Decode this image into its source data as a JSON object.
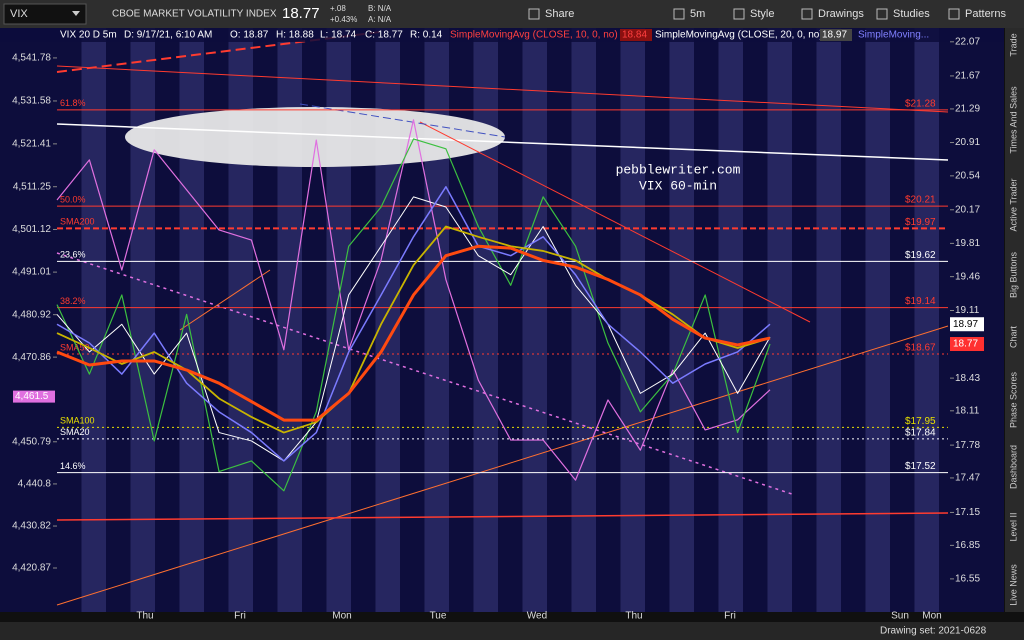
{
  "toolbar": {
    "symbol": "VIX",
    "description": "CBOE MARKET VOLATILITY INDEX",
    "last": "18.77",
    "change": "+.08",
    "change_pct": "+0.43%",
    "bid": "B: N/A",
    "ask": "A: N/A",
    "buttons": [
      "Share",
      "5m",
      "Style",
      "Drawings",
      "Studies",
      "Patterns"
    ]
  },
  "info_bar": [
    {
      "text": "VIX 20 D 5m",
      "color": "#ffffff"
    },
    {
      "text": "D: 9/17/21, 6:10 AM",
      "color": "#ffffff"
    },
    {
      "text": "O: 18.87",
      "color": "#ffffff"
    },
    {
      "text": "H: 18.88",
      "color": "#ffffff"
    },
    {
      "text": "L: 18.74",
      "color": "#ffffff"
    },
    {
      "text": "C: 18.77",
      "color": "#ffffff"
    },
    {
      "text": "R: 0.14",
      "color": "#ffffff"
    },
    {
      "text": "SimpleMovingAvg (CLOSE, 10, 0, no)",
      "color": "#ff4040"
    },
    {
      "text": "18.84",
      "color": "#ff4040"
    },
    {
      "text": "SimpleMovingAvg (CLOSE, 20, 0, no)",
      "color": "#ffffff"
    },
    {
      "text": "18.97",
      "color": "#ffffff"
    },
    {
      "text": "SimpleMoving...",
      "color": "#8080ff"
    }
  ],
  "chart_data": {
    "type": "line",
    "annotation": [
      "pebblewriter.com",
      "VIX 60-min"
    ],
    "days": [
      "Thu",
      "Fri",
      "Mon",
      "Tue",
      "Wed",
      "Thu",
      "Fri",
      "Sun",
      "Mon"
    ],
    "ylim": [
      4412.1,
      4548.4
    ],
    "yticks": [
      {
        "value": 4541.78,
        "label": "4,541.78"
      },
      {
        "value": 4531.58,
        "label": "4,531.58"
      },
      {
        "value": 4521.41,
        "label": "4,521.41"
      },
      {
        "value": 4511.25,
        "label": "4,511.25"
      },
      {
        "value": 4501.12,
        "label": "4,501.12"
      },
      {
        "value": 4491.01,
        "label": "4,491.01"
      },
      {
        "value": 4480.92,
        "label": "4,480.92"
      },
      {
        "value": 4470.86,
        "label": "4,470.86"
      },
      {
        "value": 4450.79,
        "label": "4,450.79"
      },
      {
        "value": 4440.8,
        "label": "4,440.8"
      },
      {
        "value": 4430.82,
        "label": "4,430.82"
      },
      {
        "value": 4420.87,
        "label": "4,420.87"
      }
    ],
    "y_last": {
      "value": 4461.5,
      "label": "4,461.5"
    },
    "y2lim": [
      16.32,
      22.21
    ],
    "y2_scale": "log",
    "y2ticks": [
      22.07,
      21.67,
      21.29,
      20.91,
      20.54,
      20.17,
      19.81,
      19.46,
      19.11,
      18.43,
      18.11,
      17.78,
      17.47,
      17.15,
      16.85,
      16.55
    ],
    "series": [
      {
        "color": "#e070e0",
        "axis": "y",
        "width": 1.2,
        "values": [
          4508.1,
          4517.6,
          4491.5,
          4520.0,
          4510.5,
          4501.0,
          4498.6,
          4472.6,
          4522.3,
          4472.6,
          4493.9,
          4527.1,
          4489.2,
          4465.4,
          4451.2,
          4451.2,
          4441.7,
          4460.7,
          4448.8,
          4467.8,
          4453.6,
          4456.0,
          4463.1
        ]
      },
      {
        "color": "#3cc040",
        "axis": "y2",
        "width": 1.2,
        "values": [
          19.17,
          18.47,
          19.27,
          17.82,
          19.07,
          17.53,
          17.63,
          17.35,
          18.1,
          19.78,
          20.2,
          20.95,
          20.84,
          19.99,
          19.37,
          20.31,
          19.78,
          18.78,
          18.1,
          18.47,
          19.27,
          17.9,
          18.77
        ]
      },
      {
        "color": "#ffffff",
        "axis": "y2",
        "width": 1,
        "values": [
          19.07,
          18.69,
          18.97,
          18.47,
          18.88,
          17.9,
          17.82,
          17.63,
          18.0,
          19.27,
          19.78,
          20.31,
          20.2,
          19.68,
          19.48,
          19.99,
          19.37,
          18.97,
          18.28,
          18.47,
          18.88,
          18.28,
          18.84
        ]
      },
      {
        "color": "#7b7bff",
        "axis": "y2",
        "width": 1.5,
        "values": [
          18.97,
          18.78,
          18.47,
          18.88,
          18.38,
          18.1,
          17.9,
          17.63,
          17.9,
          18.69,
          19.27,
          19.88,
          20.42,
          19.78,
          19.68,
          19.88,
          19.48,
          18.97,
          18.69,
          18.38,
          18.57,
          18.69,
          18.97
        ]
      },
      {
        "color": "#c8b400",
        "axis": "y2",
        "width": 1.8,
        "values": [
          18.88,
          18.73,
          18.57,
          18.69,
          18.51,
          18.23,
          18.05,
          17.9,
          18.0,
          18.28,
          18.97,
          19.58,
          19.99,
          19.88,
          19.78,
          19.73,
          19.63,
          19.43,
          19.27,
          19.07,
          18.83,
          18.73,
          18.83
        ]
      },
      {
        "color": "#ff4a10",
        "axis": "y2",
        "width": 3,
        "values": [
          18.69,
          18.56,
          18.6,
          18.6,
          18.51,
          18.38,
          18.2,
          18.02,
          18.02,
          18.28,
          18.69,
          19.27,
          19.68,
          19.78,
          19.76,
          19.63,
          19.56,
          19.43,
          19.27,
          19.02,
          18.83,
          18.76,
          18.83
        ]
      }
    ],
    "levels": [
      {
        "name": "61.8%",
        "value": 21.28,
        "value_label": "$21.28",
        "color": "#ff3b2f",
        "style": "solid"
      },
      {
        "name": "50.0%",
        "value": 20.21,
        "value_label": "$20.21",
        "color": "#ff3b2f",
        "style": "solid"
      },
      {
        "name": "SMA200",
        "value": 19.97,
        "value_label": "$19.97",
        "color": "#ff3b2f",
        "style": "dashed"
      },
      {
        "name": "23.6%",
        "value": 19.62,
        "value_label": "$19.62",
        "color": "#ffffff",
        "style": "solid"
      },
      {
        "name": "38.2%",
        "value": 19.14,
        "value_label": "$19.14",
        "color": "#ff3b2f",
        "style": "solid"
      },
      {
        "name": "SMA50",
        "value": 18.67,
        "value_label": "$18.67",
        "color": "#ff3b2f",
        "style": "dotted"
      },
      {
        "name": "SMA100",
        "value": 17.95,
        "value_label": "$17.95",
        "color": "#e8e000",
        "style": "dotted"
      },
      {
        "name": "SMA20",
        "value": 17.84,
        "value_label": "$17.84",
        "color": "#ffffff",
        "style": "dotted"
      },
      {
        "name": "14.6%",
        "value": 17.52,
        "value_label": "$17.52",
        "color": "#ffffff",
        "style": "solid"
      }
    ],
    "price_tags": [
      {
        "value": 18.97,
        "color": "#ffffff"
      },
      {
        "value": 18.77,
        "color": "#ff3030"
      }
    ]
  },
  "sidebar": [
    "Trade",
    "Times And Sales",
    "Active Trader",
    "Big Buttons",
    "Chart",
    "Phase Scores",
    "Dashboard",
    "Level II",
    "Live News"
  ],
  "footer": {
    "drawing_set": "Drawing set: 2021-0628"
  }
}
